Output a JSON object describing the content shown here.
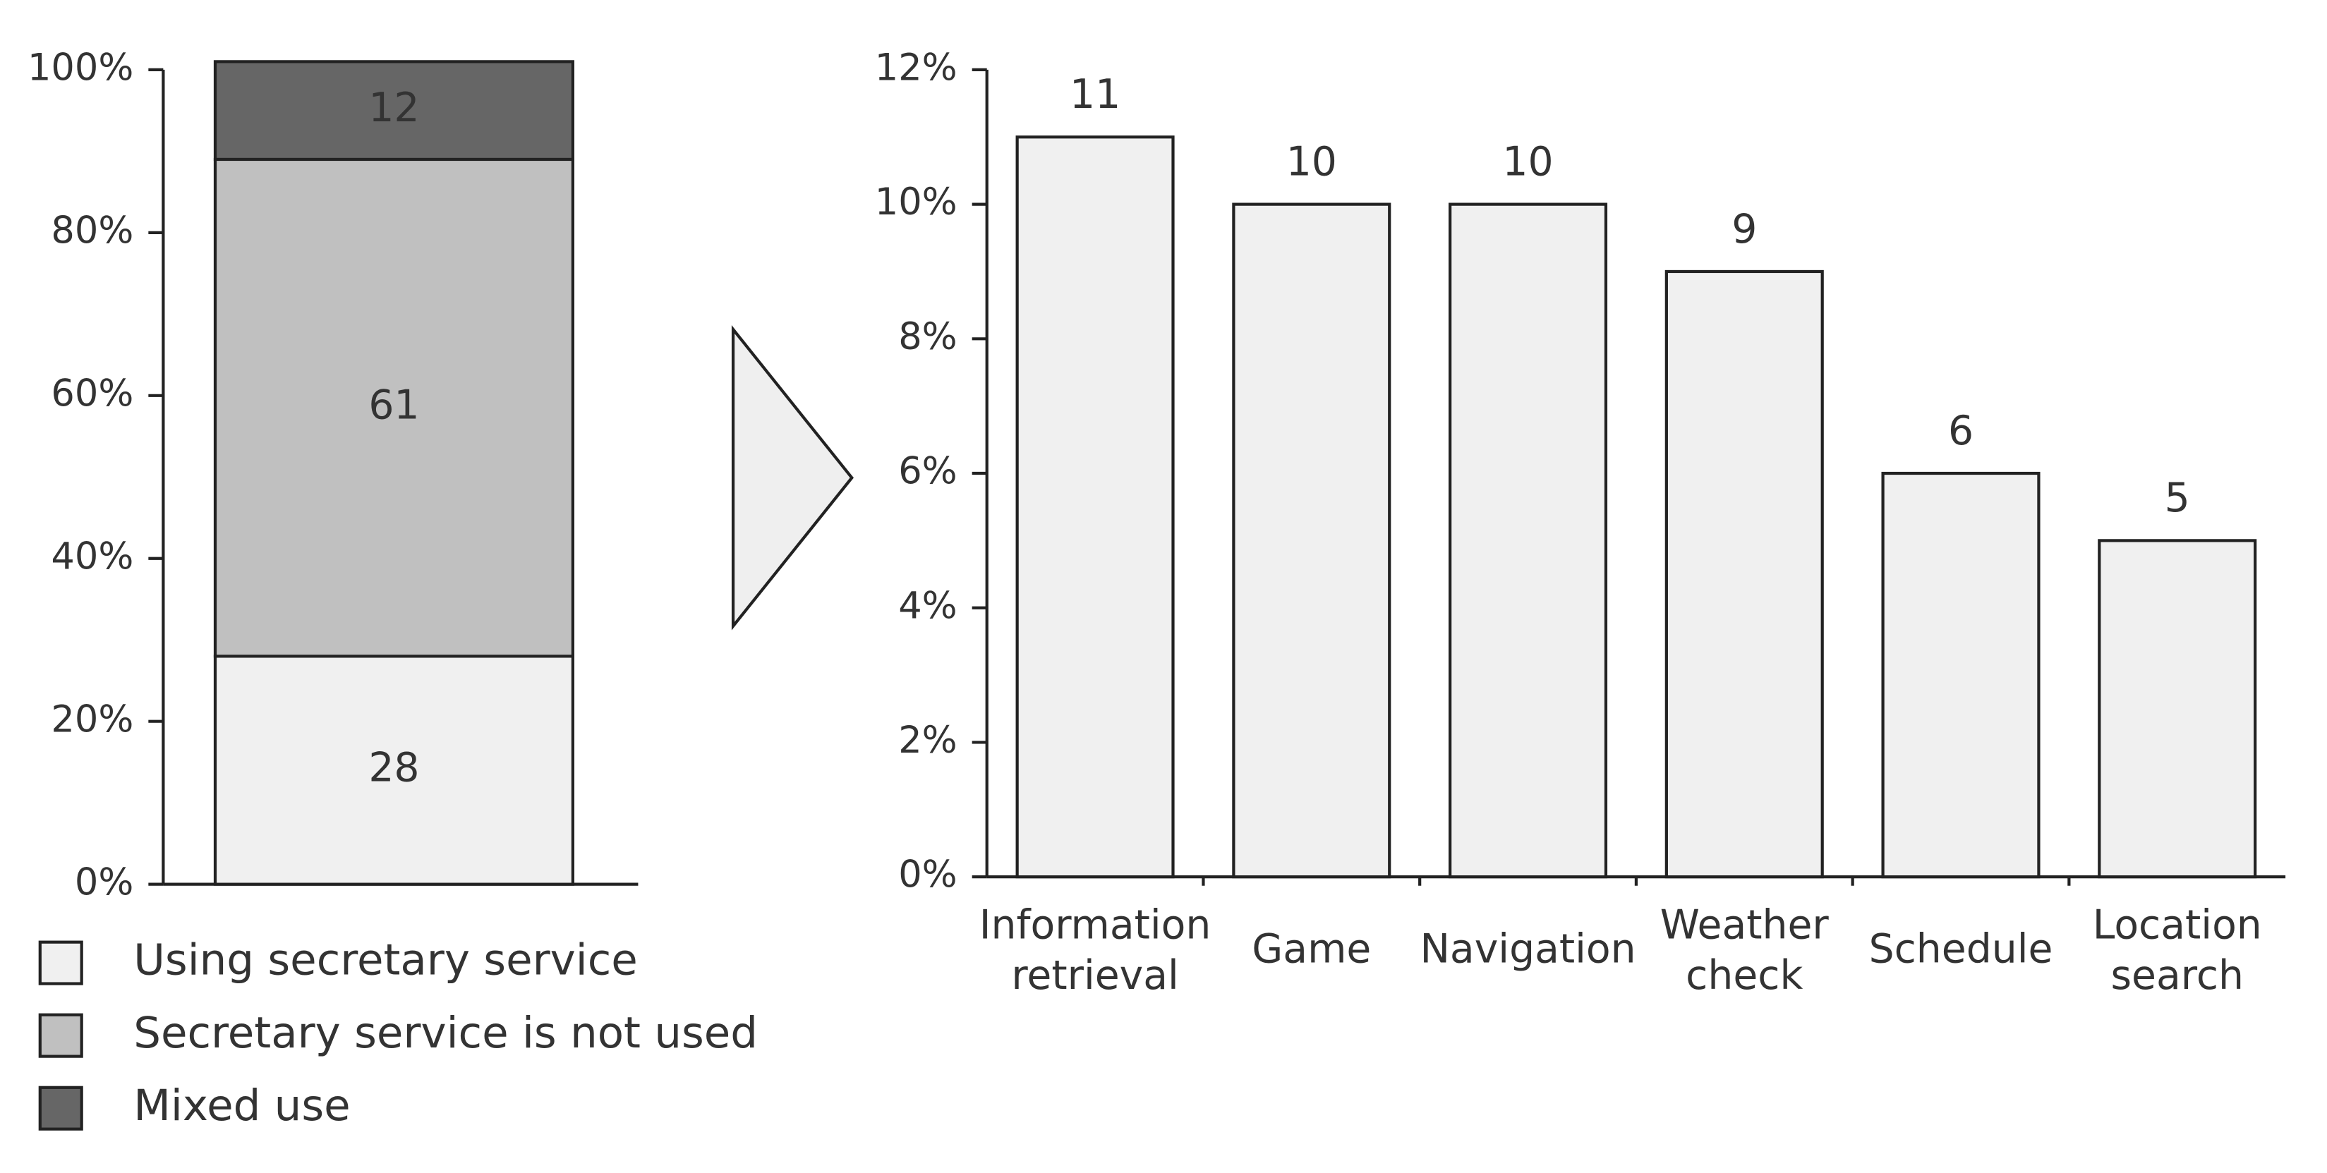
{
  "chart_data": [
    {
      "type": "stacked_bar",
      "categories": [
        null
      ],
      "series": [
        {
          "name": "Using secretary service",
          "color": "#f0f0f0",
          "values": [
            28
          ]
        },
        {
          "name": "Secretary service is not used",
          "color": "#c0c0c0",
          "values": [
            61
          ]
        },
        {
          "name": "Mixed use",
          "color": "#666666",
          "values": [
            12
          ]
        }
      ],
      "ylim": [
        0,
        100
      ],
      "yticks": [
        {
          "value": 0,
          "label": "0%"
        },
        {
          "value": 20,
          "label": "20%"
        },
        {
          "value": 40,
          "label": "40%"
        },
        {
          "value": 60,
          "label": "60%"
        },
        {
          "value": 80,
          "label": "80%"
        },
        {
          "value": 100,
          "label": "100%"
        }
      ]
    },
    {
      "type": "bar",
      "categories": [
        "Information retrieval",
        "Game",
        "Navigation",
        "Weather check",
        "Schedule",
        "Location search"
      ],
      "values": [
        11,
        10,
        10,
        9,
        6,
        5
      ],
      "color": "#f0f0f0",
      "ylim": [
        0,
        12
      ],
      "yticks": [
        {
          "value": 0,
          "label": "0%"
        },
        {
          "value": 2,
          "label": "2%"
        },
        {
          "value": 4,
          "label": "4%"
        },
        {
          "value": 6,
          "label": "6%"
        },
        {
          "value": 8,
          "label": "8%"
        },
        {
          "value": 10,
          "label": "10%"
        },
        {
          "value": 12,
          "label": "12%"
        }
      ]
    }
  ]
}
